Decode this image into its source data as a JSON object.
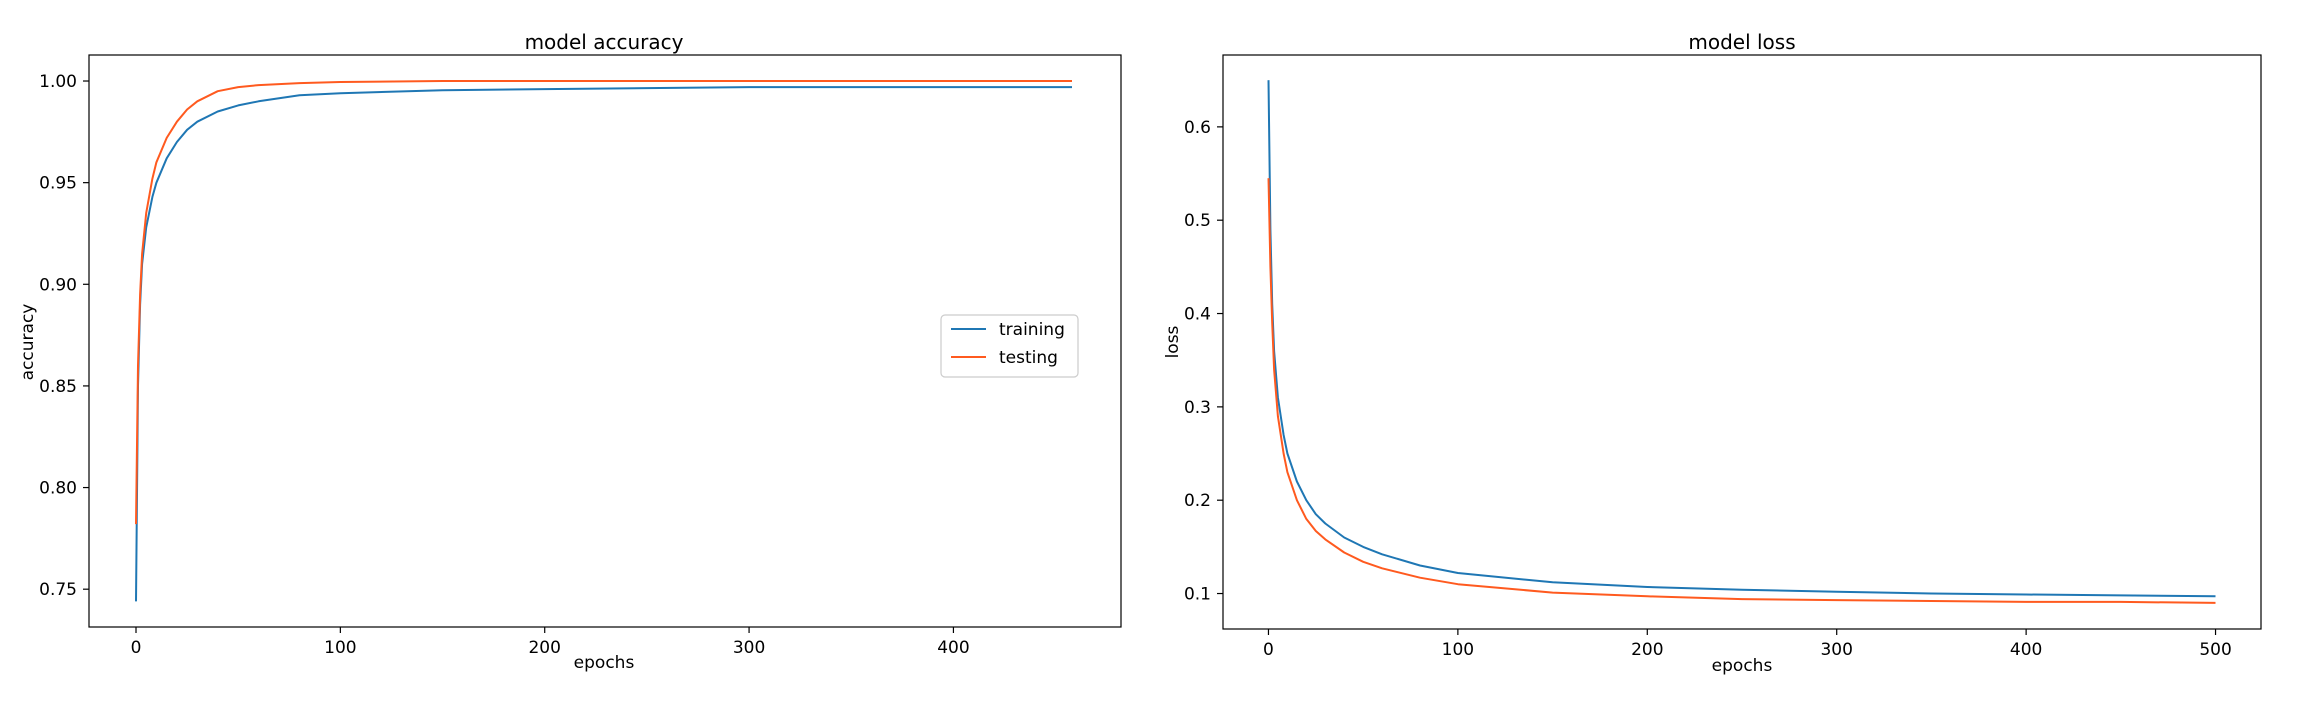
{
  "colors": {
    "training": "#1f77b4",
    "testing": "#ff5a1f"
  },
  "chart_data": [
    {
      "type": "line",
      "title": "model accuracy",
      "xlabel": "epochs",
      "ylabel": "accuracy",
      "xlim": [
        -23,
        482
      ],
      "ylim": [
        0.7314,
        1.0128
      ],
      "xticks": [
        0,
        100,
        200,
        300,
        400
      ],
      "yticks": [
        0.75,
        0.8,
        0.85,
        0.9,
        0.95,
        1.0
      ],
      "ytick_labels": [
        "0.75",
        "0.80",
        "0.85",
        "0.90",
        "0.95",
        "1.00"
      ],
      "legend": {
        "position": "center-right",
        "entries": [
          "training",
          "testing"
        ]
      },
      "grid": false,
      "series": [
        {
          "name": "training",
          "color": "#1f77b4",
          "x": [
            0,
            1,
            2,
            3,
            5,
            8,
            10,
            15,
            20,
            25,
            30,
            40,
            50,
            60,
            80,
            100,
            150,
            200,
            250,
            300,
            350,
            400,
            458
          ],
          "y": [
            0.744,
            0.85,
            0.89,
            0.91,
            0.928,
            0.943,
            0.95,
            0.962,
            0.97,
            0.976,
            0.98,
            0.985,
            0.988,
            0.99,
            0.993,
            0.994,
            0.9955,
            0.996,
            0.9965,
            0.997,
            0.997,
            0.997,
            0.997
          ]
        },
        {
          "name": "testing",
          "color": "#ff5a1f",
          "x": [
            0,
            1,
            2,
            3,
            5,
            8,
            10,
            15,
            20,
            25,
            30,
            40,
            50,
            60,
            80,
            100,
            150,
            200,
            250,
            300,
            350,
            400,
            458
          ],
          "y": [
            0.782,
            0.86,
            0.895,
            0.915,
            0.935,
            0.952,
            0.96,
            0.972,
            0.98,
            0.986,
            0.99,
            0.995,
            0.997,
            0.998,
            0.999,
            0.9995,
            1.0,
            1.0,
            1.0,
            1.0,
            1.0,
            1.0,
            1.0
          ]
        }
      ]
    },
    {
      "type": "line",
      "title": "model loss",
      "xlabel": "epochs",
      "ylabel": "loss",
      "xlim": [
        -24,
        524
      ],
      "ylim": [
        0.062,
        0.677
      ],
      "xticks": [
        0,
        100,
        200,
        300,
        400,
        500
      ],
      "yticks": [
        0.1,
        0.2,
        0.3,
        0.4,
        0.5,
        0.6
      ],
      "ytick_labels": [
        "0.1",
        "0.2",
        "0.3",
        "0.4",
        "0.5",
        "0.6"
      ],
      "grid": false,
      "series": [
        {
          "name": "training",
          "color": "#1f77b4",
          "x": [
            0,
            1,
            2,
            3,
            5,
            8,
            10,
            15,
            20,
            25,
            30,
            40,
            50,
            60,
            80,
            100,
            150,
            200,
            250,
            300,
            350,
            400,
            450,
            500
          ],
          "y": [
            0.65,
            0.49,
            0.41,
            0.36,
            0.31,
            0.27,
            0.25,
            0.22,
            0.2,
            0.185,
            0.175,
            0.16,
            0.15,
            0.142,
            0.13,
            0.122,
            0.112,
            0.107,
            0.104,
            0.102,
            0.1,
            0.099,
            0.098,
            0.097
          ]
        },
        {
          "name": "testing",
          "color": "#ff5a1f",
          "x": [
            0,
            1,
            2,
            3,
            5,
            8,
            10,
            15,
            20,
            25,
            30,
            40,
            50,
            60,
            80,
            100,
            150,
            200,
            250,
            300,
            350,
            400,
            450,
            500
          ],
          "y": [
            0.545,
            0.45,
            0.39,
            0.34,
            0.29,
            0.25,
            0.23,
            0.2,
            0.18,
            0.167,
            0.158,
            0.144,
            0.134,
            0.127,
            0.117,
            0.11,
            0.101,
            0.097,
            0.094,
            0.093,
            0.092,
            0.091,
            0.091,
            0.09
          ]
        }
      ]
    }
  ]
}
